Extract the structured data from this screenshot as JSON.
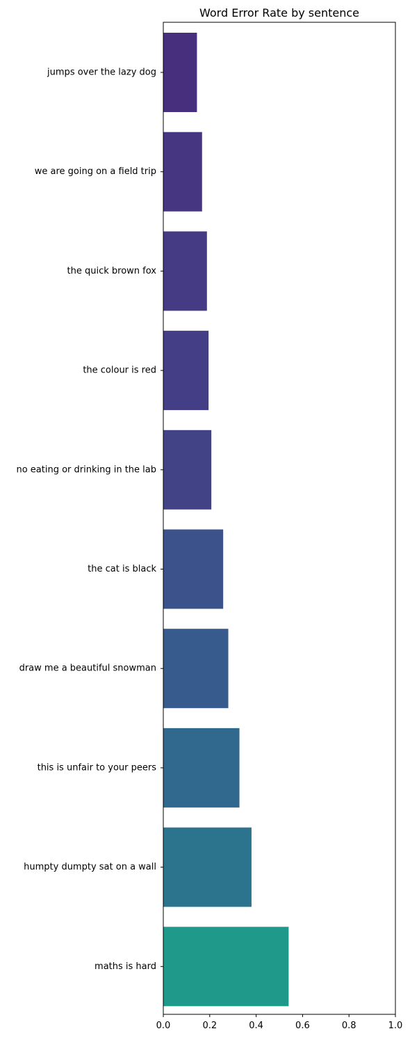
{
  "chart_data": {
    "type": "bar",
    "orientation": "horizontal",
    "title": "Word Error Rate by sentence",
    "xlabel": "",
    "ylabel": "",
    "xlim": [
      0,
      1.0
    ],
    "xticks": [
      "0.0",
      "0.2",
      "0.4",
      "0.6",
      "0.8",
      "1.0"
    ],
    "grid": false,
    "categories": [
      "jumps over the lazy dog",
      "we are going on a field trip",
      "the quick brown fox",
      "the colour is red",
      "no eating or drinking in the lab",
      "the cat is black",
      "draw me a beautiful snowman",
      "this is unfair to your peers",
      "humpty dumpty sat on a wall",
      "maths is hard"
    ],
    "values": [
      0.145,
      0.167,
      0.188,
      0.195,
      0.207,
      0.258,
      0.28,
      0.328,
      0.38,
      0.54
    ],
    "colors": [
      "#482f7e",
      "#463581",
      "#443b84",
      "#433e85",
      "#414386",
      "#3b528b",
      "#375b8d",
      "#31688e",
      "#2c738e",
      "#1f998a"
    ]
  }
}
